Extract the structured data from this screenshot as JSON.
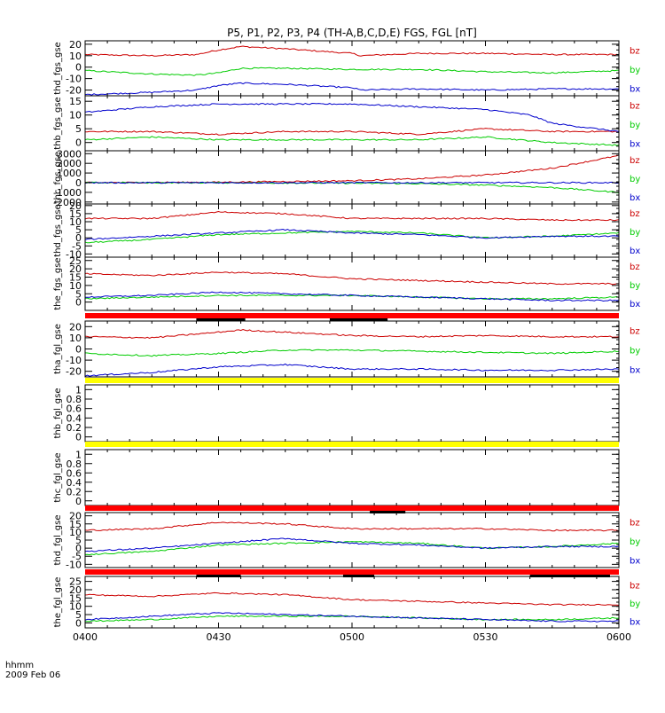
{
  "title": "P5, P1, P2, P3, P4 (TH-A,B,C,D,E) FGS, FGL [nT]",
  "footer": {
    "line1": "hhmm",
    "line2": "2009 Feb 06"
  },
  "colors": {
    "bz": "#cc0000",
    "by": "#00cc00",
    "bx": "#0000cc",
    "bar_red": "#ff0000",
    "bar_yellow": "#ffff00",
    "bar_black": "#000000"
  },
  "chart_data": {
    "type": "line",
    "x_axis": {
      "range": [
        "0400",
        "0600"
      ],
      "ticks": [
        "0400",
        "0430",
        "0500",
        "0530",
        "0600"
      ],
      "label": "hhmm"
    },
    "panels": [
      {
        "ylabel": "thd_fgs_gse",
        "ylim": [
          -25,
          23
        ],
        "ticks": [
          20,
          10,
          0,
          -10,
          -20
        ],
        "legend": [
          "bz",
          "by",
          "bx"
        ],
        "series": [
          {
            "name": "bz",
            "x": [
              "0400",
              "0415",
              "0425",
              "0430",
              "0435",
              "0445",
              "0500",
              "0502",
              "0515",
              "0530",
              "0545",
              "0600"
            ],
            "y": [
              11,
              10,
              11,
              15,
              18,
              16,
              12,
              10,
              12,
              12,
              11,
              11
            ]
          },
          {
            "name": "by",
            "x": [
              "0400",
              "0415",
              "0425",
              "0430",
              "0435",
              "0445",
              "0500",
              "0515",
              "0530",
              "0545",
              "0600"
            ],
            "y": [
              -3,
              -6,
              -7,
              -5,
              -1,
              -1,
              -2,
              -2,
              -4,
              -5,
              -3
            ]
          },
          {
            "name": "bx",
            "x": [
              "0400",
              "0415",
              "0425",
              "0430",
              "0435",
              "0445",
              "0500",
              "0502",
              "0515",
              "0530",
              "0545",
              "0600"
            ],
            "y": [
              -24,
              -22,
              -20,
              -16,
              -14,
              -15,
              -18,
              -20,
              -19,
              -20,
              -19,
              -19
            ]
          }
        ]
      },
      {
        "ylabel": "thb_fgs_gse",
        "ylim": [
          -3,
          17
        ],
        "ticks": [
          15,
          10,
          5,
          0
        ],
        "legend": [
          "bz",
          "by",
          "bx"
        ],
        "series": [
          {
            "name": "bz",
            "x": [
              "0400",
              "0415",
              "0430",
              "0445",
              "0500",
              "0515",
              "0530",
              "0545",
              "0600"
            ],
            "y": [
              4,
              4,
              3,
              4,
              4,
              3,
              5,
              4,
              4
            ]
          },
          {
            "name": "by",
            "x": [
              "0400",
              "0415",
              "0430",
              "0445",
              "0500",
              "0515",
              "0530",
              "0545",
              "0600"
            ],
            "y": [
              1,
              2,
              1,
              1,
              1,
              1,
              2,
              0,
              -1
            ]
          },
          {
            "name": "bx",
            "x": [
              "0400",
              "0415",
              "0430",
              "0445",
              "0500",
              "0515",
              "0530",
              "0540",
              "0545",
              "0600"
            ],
            "y": [
              11,
              13,
              14,
              14,
              14,
              13,
              12,
              10,
              7,
              4
            ]
          }
        ]
      },
      {
        "ylabel": "thc_fgs_gse",
        "ylim": [
          -2200,
          3300
        ],
        "ticks": [
          3000,
          2000,
          1000,
          0,
          -1000,
          -2000
        ],
        "legend": [
          "bz",
          "by",
          "bx"
        ],
        "series": [
          {
            "name": "bz",
            "x": [
              "0400",
              "0430",
              "0500",
              "0515",
              "0530",
              "0545",
              "0600"
            ],
            "y": [
              0,
              50,
              200,
              400,
              800,
              1500,
              2800
            ]
          },
          {
            "name": "by",
            "x": [
              "0400",
              "0430",
              "0500",
              "0515",
              "0530",
              "0545",
              "0600"
            ],
            "y": [
              0,
              0,
              -50,
              -100,
              -250,
              -500,
              -1000
            ]
          },
          {
            "name": "bx",
            "x": [
              "0400",
              "0430",
              "0500",
              "0530",
              "0600"
            ],
            "y": [
              0,
              0,
              0,
              0,
              0
            ]
          }
        ]
      },
      {
        "ylabel": "thd_fgs_gse",
        "ylim": [
          -12,
          21
        ],
        "ticks": [
          20,
          15,
          10,
          5,
          0,
          -5,
          -10
        ],
        "legend": [
          "bz",
          "by",
          "bx"
        ],
        "series": [
          {
            "name": "bz",
            "x": [
              "0400",
              "0415",
              "0430",
              "0445",
              "0500",
              "0515",
              "0530",
              "0545",
              "0600"
            ],
            "y": [
              12,
              12,
              16,
              15,
              12,
              12,
              12,
              11,
              11
            ]
          },
          {
            "name": "by",
            "x": [
              "0400",
              "0415",
              "0430",
              "0445",
              "0500",
              "0515",
              "0530",
              "0545",
              "0600"
            ],
            "y": [
              -3,
              -1,
              2,
              3,
              4,
              3,
              0,
              1,
              3
            ]
          },
          {
            "name": "bx",
            "x": [
              "0400",
              "0415",
              "0430",
              "0445",
              "0500",
              "0515",
              "0530",
              "0545",
              "0600"
            ],
            "y": [
              -1,
              1,
              3,
              5,
              3,
              2,
              0,
              1,
              1
            ]
          }
        ]
      },
      {
        "ylabel": "the_fgs_gse",
        "ylim": [
          -5,
          27
        ],
        "ticks": [
          25,
          20,
          15,
          10,
          5,
          0
        ],
        "legend": [
          "bz",
          "by",
          "bx"
        ],
        "series": [
          {
            "name": "bz",
            "x": [
              "0400",
              "0415",
              "0430",
              "0445",
              "0500",
              "0515",
              "0530",
              "0545",
              "0600"
            ],
            "y": [
              17,
              16,
              18,
              17,
              14,
              13,
              12,
              11,
              11
            ]
          },
          {
            "name": "by",
            "x": [
              "0400",
              "0415",
              "0430",
              "0445",
              "0500",
              "0515",
              "0530",
              "0545",
              "0600"
            ],
            "y": [
              2,
              3,
              4,
              4,
              4,
              3,
              2,
              2,
              3
            ]
          },
          {
            "name": "bx",
            "x": [
              "0400",
              "0415",
              "0430",
              "0445",
              "0500",
              "0515",
              "0530",
              "0545",
              "0600"
            ],
            "y": [
              3,
              4,
              6,
              5,
              4,
              3,
              2,
              1,
              1
            ]
          }
        ]
      },
      {
        "ylabel": "tha_fgl_gse",
        "ylim": [
          -25,
          25
        ],
        "ticks": [
          20,
          10,
          0,
          -10,
          -20
        ],
        "legend": [
          "bz",
          "by",
          "bx"
        ],
        "status_bar": {
          "color": "red",
          "segments": [
            [
              "0425",
              "0436"
            ],
            [
              "0455",
              "0508"
            ]
          ]
        },
        "series": [
          {
            "name": "bz",
            "x": [
              "0400",
              "0415",
              "0430",
              "0435",
              "0445",
              "0500",
              "0515",
              "0530",
              "0545",
              "0600"
            ],
            "y": [
              11,
              10,
              15,
              17,
              15,
              12,
              11,
              12,
              11,
              11
            ]
          },
          {
            "name": "by",
            "x": [
              "0400",
              "0415",
              "0430",
              "0445",
              "0500",
              "0515",
              "0530",
              "0545",
              "0600"
            ],
            "y": [
              -4,
              -6,
              -4,
              -1,
              -1,
              -2,
              -3,
              -4,
              -2
            ]
          },
          {
            "name": "bx",
            "x": [
              "0400",
              "0415",
              "0430",
              "0445",
              "0500",
              "0515",
              "0530",
              "0545",
              "0600"
            ],
            "y": [
              -24,
              -21,
              -16,
              -14,
              -18,
              -18,
              -19,
              -19,
              -18
            ]
          }
        ]
      },
      {
        "ylabel": "thb_fgl_gse",
        "ylim": [
          -0.1,
          1.1
        ],
        "ticks": [
          1.0,
          0.8,
          0.6,
          0.4,
          0.2,
          0.0
        ],
        "legend": [],
        "status_bar": {
          "color": "yellow",
          "segments": []
        },
        "series": []
      },
      {
        "ylabel": "thc_fgl_gse",
        "ylim": [
          -0.1,
          1.1
        ],
        "ticks": [
          1.0,
          0.8,
          0.6,
          0.4,
          0.2,
          0.0
        ],
        "legend": [],
        "status_bar": {
          "color": "yellow",
          "segments": []
        },
        "series": []
      },
      {
        "ylabel": "thd_fgl_gse",
        "ylim": [
          -12,
          22
        ],
        "ticks": [
          20,
          15,
          10,
          5,
          0,
          -5,
          -10
        ],
        "legend": [
          "bz",
          "by",
          "bx"
        ],
        "status_bar": {
          "color": "red",
          "segments": [
            [
              "0504",
              "0512"
            ]
          ]
        },
        "series": [
          {
            "name": "bz",
            "x": [
              "0400",
              "0415",
              "0430",
              "0445",
              "0500",
              "0515",
              "0530",
              "0545",
              "0600"
            ],
            "y": [
              11,
              12,
              16,
              15,
              12,
              12,
              12,
              11,
              11
            ]
          },
          {
            "name": "by",
            "x": [
              "0400",
              "0415",
              "0430",
              "0445",
              "0500",
              "0515",
              "0530",
              "0545",
              "0600"
            ],
            "y": [
              -4,
              -2,
              2,
              3,
              4,
              3,
              0,
              1,
              3
            ]
          },
          {
            "name": "bx",
            "x": [
              "0400",
              "0415",
              "0430",
              "0445",
              "0500",
              "0515",
              "0530",
              "0545",
              "0600"
            ],
            "y": [
              -2,
              0,
              3,
              6,
              3,
              2,
              0,
              1,
              1
            ]
          }
        ]
      },
      {
        "ylabel": "the_fgl_gse",
        "ylim": [
          -3,
          28
        ],
        "ticks": [
          25,
          20,
          15,
          10,
          5,
          0
        ],
        "legend": [
          "bz",
          "by",
          "bx"
        ],
        "status_bar": {
          "color": "red",
          "segments": [
            [
              "0425",
              "0435"
            ],
            [
              "0458",
              "0505"
            ],
            [
              "0540",
              "0558"
            ]
          ]
        },
        "series": [
          {
            "name": "bz",
            "x": [
              "0400",
              "0415",
              "0430",
              "0445",
              "0500",
              "0515",
              "0530",
              "0545",
              "0600"
            ],
            "y": [
              17,
              16,
              18,
              17,
              14,
              13,
              12,
              11,
              11
            ]
          },
          {
            "name": "by",
            "x": [
              "0400",
              "0415",
              "0430",
              "0445",
              "0500",
              "0515",
              "0530",
              "0545",
              "0600"
            ],
            "y": [
              1,
              2,
              4,
              4,
              4,
              3,
              2,
              2,
              3
            ]
          },
          {
            "name": "bx",
            "x": [
              "0400",
              "0415",
              "0430",
              "0445",
              "0500",
              "0515",
              "0530",
              "0545",
              "0600"
            ],
            "y": [
              2,
              4,
              6,
              5,
              4,
              3,
              2,
              1,
              1
            ]
          }
        ]
      }
    ]
  }
}
